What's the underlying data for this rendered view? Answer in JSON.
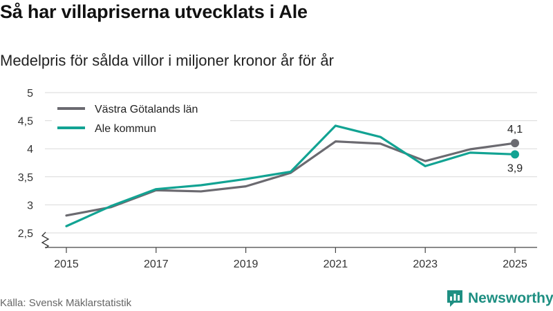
{
  "title": "Så har villapriserna utvecklats i Ale",
  "subtitle": "Medelpris för sålda villor i miljoner kronor år för år",
  "source": "Källa: Svensk Mäklarstatistik",
  "brand": "Newsworthy",
  "brand_icon": "bar-chart-logo-icon",
  "colors": {
    "gray": "#6b6a70",
    "teal": "#12a393",
    "brand": "#1e8f82"
  },
  "chart_data": {
    "type": "line",
    "title": "Så har villapriserna utvecklats i Ale",
    "subtitle": "Medelpris för sålda villor i miljoner kronor år för år",
    "xlabel": "",
    "ylabel": "",
    "x": [
      2015,
      2016,
      2017,
      2018,
      2019,
      2020,
      2021,
      2022,
      2023,
      2024,
      2025
    ],
    "x_ticks": [
      "2015",
      "2017",
      "2019",
      "2021",
      "2023",
      "2025"
    ],
    "y_ticks": [
      "2,5",
      "3",
      "3,5",
      "4",
      "4,5",
      "5"
    ],
    "xlim": [
      2015,
      2025
    ],
    "ylim": [
      2.5,
      5
    ],
    "grid": true,
    "legend_position": "top-left",
    "series": [
      {
        "name": "Västra Götalands län",
        "color": "#6b6a70",
        "values": [
          2.81,
          2.96,
          3.26,
          3.24,
          3.33,
          3.57,
          4.13,
          4.09,
          3.78,
          3.99,
          4.1
        ],
        "end_label": "4,1"
      },
      {
        "name": "Ale kommun",
        "color": "#12a393",
        "values": [
          2.62,
          2.98,
          3.28,
          3.35,
          3.46,
          3.59,
          4.41,
          4.21,
          3.69,
          3.93,
          3.9
        ],
        "end_label": "3,9"
      }
    ]
  }
}
